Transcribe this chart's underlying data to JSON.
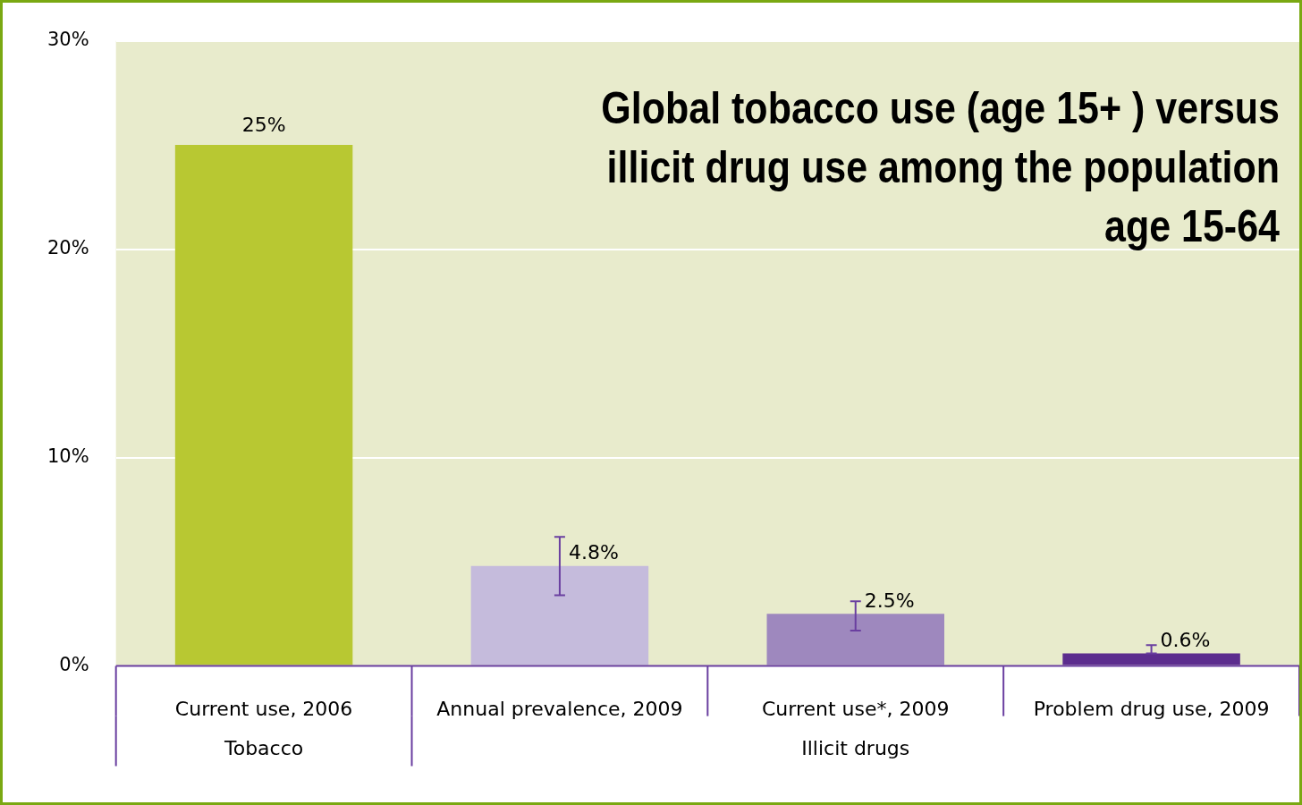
{
  "chart_data": {
    "type": "bar",
    "title": "Global tobacco use (age 15+ ) versus illicit drug use among the population age 15-64",
    "categories": [
      "Current use, 2006",
      "Annual prevalence, 2009",
      "Current use*, 2009",
      "Problem drug use, 2009"
    ],
    "values": [
      25,
      4.8,
      2.5,
      0.6
    ],
    "colors": [
      "#b8c832",
      "#c5bbdc",
      "#9e88be",
      "#5c2d8e"
    ],
    "errors": [
      null,
      [
        3.4,
        6.2
      ],
      [
        1.7,
        3.1
      ],
      [
        0.6,
        1.0
      ]
    ],
    "value_labels": [
      "25%",
      "4.8%",
      "2.5%",
      "0.6%"
    ],
    "ylim": [
      0,
      30
    ],
    "yticks": [
      {
        "value": 0,
        "label": "0%"
      },
      {
        "value": 10,
        "label": "10%"
      },
      {
        "value": 20,
        "label": "20%"
      },
      {
        "value": 30,
        "label": "30%"
      }
    ],
    "grid": "y",
    "annotations": [
      "Tobacco",
      "Illicit drugs"
    ]
  }
}
